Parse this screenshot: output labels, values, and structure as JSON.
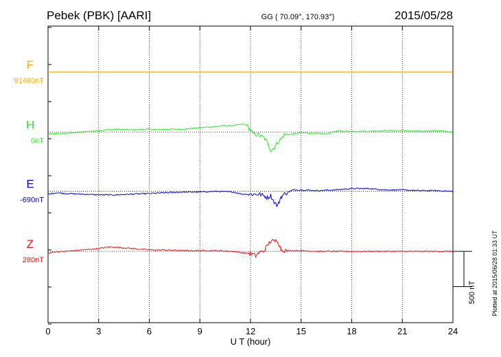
{
  "header": {
    "station": "Pebek (PBK)  [AARI]",
    "coords": "GG ( 70.09°, 170.93°)",
    "date": "2015/05/28"
  },
  "footer": {
    "plotted": "Plotted at 2015/06/28 01:33 UT"
  },
  "chart_data": {
    "type": "line",
    "xlabel": "U T (hour)",
    "xlim": [
      0,
      24
    ],
    "xticks": [
      0,
      3,
      6,
      9,
      12,
      15,
      18,
      21,
      24
    ],
    "xtick_labels": [
      "0",
      "3",
      "6",
      "9",
      "12",
      "15",
      "18",
      "21",
      "24"
    ],
    "ylim_nT": [
      -2000,
      2200
    ],
    "scale_bar": {
      "label": "500 nT",
      "value_nT": 500
    },
    "grid": "dotted vertical lines at ticks",
    "series": [
      {
        "name": "F",
        "base_label": "91460nT",
        "color": "#ffaa00",
        "offset_nT": 1550,
        "t": [
          0,
          24
        ],
        "dv": [
          0,
          0
        ]
      },
      {
        "name": "H",
        "base_label": "0nT",
        "color": "#22ee22",
        "offset_nT": 700,
        "t": [
          0,
          1,
          2,
          2.5,
          3,
          3.5,
          4,
          5,
          6,
          6.5,
          7,
          8,
          9,
          10,
          10.5,
          11,
          11.5,
          11.8,
          12,
          12.2,
          12.5,
          12.8,
          13,
          13.2,
          13.4,
          13.6,
          13.8,
          14,
          14.5,
          15,
          16,
          16.5,
          17,
          18,
          19,
          20,
          21,
          22,
          23,
          24
        ],
        "dv": [
          -30,
          -20,
          0,
          10,
          20,
          30,
          40,
          30,
          40,
          30,
          40,
          40,
          60,
          80,
          90,
          90,
          110,
          100,
          20,
          -30,
          -40,
          -80,
          -150,
          -260,
          -220,
          -150,
          -100,
          -40,
          -30,
          -10,
          -20,
          -30,
          10,
          10,
          10,
          20,
          20,
          10,
          20,
          0
        ]
      },
      {
        "name": "E",
        "base_label": "-690nT",
        "color": "#0000dd",
        "offset_nT": -140,
        "t": [
          0,
          0.5,
          1,
          2,
          3,
          4,
          5,
          6,
          7,
          8,
          9,
          10,
          11,
          11.5,
          12,
          12.5,
          12.8,
          13,
          13.2,
          13.4,
          13.6,
          13.8,
          14,
          14.5,
          15,
          16,
          17,
          18,
          19,
          20,
          21,
          22,
          23,
          24
        ],
        "dv": [
          -40,
          -20,
          -30,
          -40,
          -50,
          -50,
          -40,
          -30,
          -20,
          -10,
          -10,
          0,
          -10,
          -40,
          -40,
          -40,
          -60,
          -90,
          -60,
          -150,
          -210,
          -80,
          -40,
          20,
          20,
          10,
          20,
          40,
          40,
          20,
          20,
          10,
          10,
          0
        ]
      },
      {
        "name": "Z",
        "base_label": "280nT",
        "color": "#ee1111",
        "offset_nT": -990,
        "t": [
          0,
          0.3,
          1,
          2,
          3,
          3.5,
          4,
          5,
          6,
          7,
          8,
          9,
          10,
          11,
          11.5,
          12,
          12.3,
          12.5,
          12.8,
          13,
          13.2,
          13.4,
          13.6,
          13.8,
          14,
          15,
          16,
          17,
          18,
          19,
          20,
          21,
          22,
          23,
          24
        ],
        "dv": [
          -30,
          -10,
          0,
          20,
          40,
          60,
          60,
          40,
          20,
          20,
          10,
          10,
          10,
          0,
          -20,
          -30,
          -60,
          -20,
          10,
          80,
          150,
          140,
          160,
          30,
          10,
          10,
          0,
          0,
          0,
          0,
          0,
          0,
          0,
          0,
          0
        ]
      }
    ]
  }
}
